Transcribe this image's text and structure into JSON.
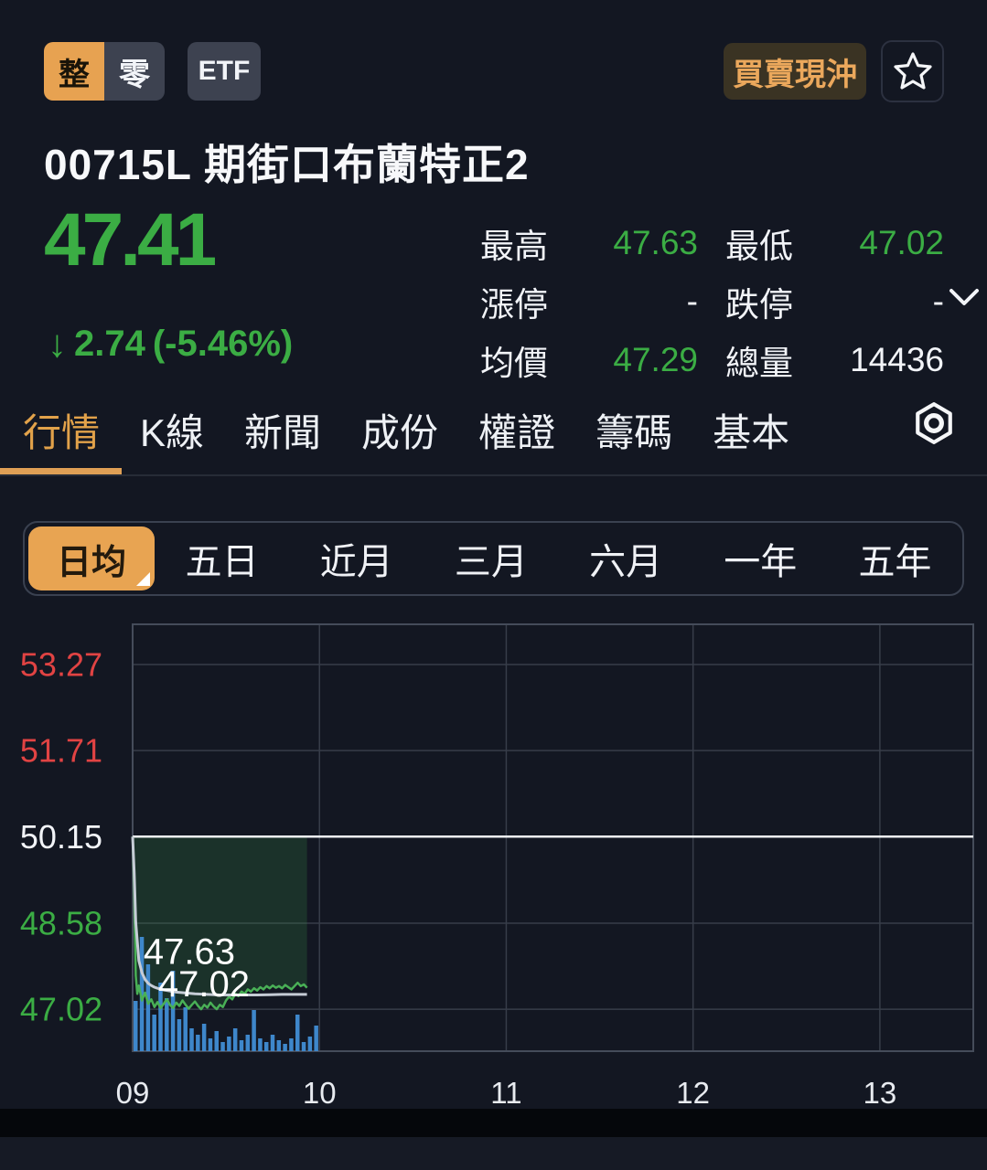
{
  "header": {
    "lot_toggle": {
      "options": [
        "整",
        "零"
      ],
      "selected": "整"
    },
    "etf_badge": "ETF",
    "day_trade_button": "買賣現沖"
  },
  "stock": {
    "title": "00715L 期街口布蘭特正2",
    "price": "47.41",
    "change_arrow": "↓",
    "change": "2.74",
    "change_pct": "(-5.46%)",
    "stats": {
      "rows": [
        {
          "label1": "最高",
          "value1": "47.63",
          "label2": "最低",
          "value2": "47.02"
        },
        {
          "label1": "漲停",
          "value1": "-",
          "label2": "跌停",
          "value2": "-"
        },
        {
          "label1": "均價",
          "value1": "47.29",
          "label2": "總量",
          "value2": "14436"
        }
      ]
    }
  },
  "tabs": {
    "items": [
      {
        "label": "行情"
      },
      {
        "label": "K線"
      },
      {
        "label": "新聞"
      },
      {
        "label": "成份"
      },
      {
        "label": "權證"
      },
      {
        "label": "籌碼"
      },
      {
        "label": "基本"
      }
    ],
    "settings_icon": "hex-nut-icon"
  },
  "ranges": {
    "items": [
      {
        "label": "日均",
        "active": true
      },
      {
        "label": "五日"
      },
      {
        "label": "近月"
      },
      {
        "label": "三月"
      },
      {
        "label": "六月"
      },
      {
        "label": "一年"
      },
      {
        "label": "五年"
      }
    ]
  },
  "colors": {
    "accent_orange": "#e7a251",
    "green": "#3bad44",
    "green_line": "#49b056",
    "red": "#e14343",
    "volume_blue": "#3e87cb",
    "background": "#131722",
    "reference_white": "#eef1f4",
    "avg_line": "#c6ccd6",
    "gridline": "#373d49",
    "plot_border": "#454c5a",
    "fill_green": "rgba(62,158,76,0.20)",
    "axis_text": "#e8ebf0"
  },
  "chart_data": {
    "type": "line",
    "title": "intraday price with average line and volume",
    "session_minutes": 270,
    "x_ticks": [
      {
        "minute": 0,
        "label": "09"
      },
      {
        "minute": 60,
        "label": "10"
      },
      {
        "minute": 120,
        "label": "11"
      },
      {
        "minute": 180,
        "label": "12"
      },
      {
        "minute": 240,
        "label": "13"
      }
    ],
    "x_gridline_minutes": [
      60,
      120,
      180,
      240
    ],
    "ylim": [
      46.26,
      54.0
    ],
    "y_ticks": [
      {
        "value": 53.27,
        "label": "53.27",
        "color": "#e14343"
      },
      {
        "value": 51.71,
        "label": "51.71",
        "color": "#e14343"
      },
      {
        "value": 50.15,
        "label": "50.15",
        "color": "#f2f4f8"
      },
      {
        "value": 48.58,
        "label": "48.58",
        "color": "#3bad44"
      },
      {
        "value": 47.02,
        "label": "47.02",
        "color": "#3bad44"
      }
    ],
    "reference_price": 50.15,
    "high": "47.63",
    "low": "47.02",
    "annotations": [
      {
        "text": "47.63",
        "minute": 3.5,
        "price": 48.06
      },
      {
        "text": "47.02",
        "minute": 8.2,
        "price": 47.47
      }
    ],
    "price_series": [
      [
        0,
        50.15
      ],
      [
        0.5,
        49.2
      ],
      [
        1,
        47.63
      ],
      [
        1.5,
        47.3
      ],
      [
        2,
        47.45
      ],
      [
        3,
        47.18
      ],
      [
        4,
        47.32
      ],
      [
        5,
        47.12
      ],
      [
        6,
        47.2
      ],
      [
        7,
        47.06
      ],
      [
        8,
        47.15
      ],
      [
        9,
        47.04
      ],
      [
        10,
        47.12
      ],
      [
        11,
        47.2
      ],
      [
        12,
        47.1
      ],
      [
        13,
        47.04
      ],
      [
        14,
        47.14
      ],
      [
        15,
        47.08
      ],
      [
        16,
        47.18
      ],
      [
        17,
        47.1
      ],
      [
        18,
        47.03
      ],
      [
        19,
        47.1
      ],
      [
        20,
        47.16
      ],
      [
        21,
        47.08
      ],
      [
        22,
        47.02
      ],
      [
        23,
        47.1
      ],
      [
        24,
        47.05
      ],
      [
        25,
        47.14
      ],
      [
        26,
        47.07
      ],
      [
        27,
        47.02
      ],
      [
        28,
        47.1
      ],
      [
        29,
        47.06
      ],
      [
        30,
        47.18
      ],
      [
        31,
        47.25
      ],
      [
        32,
        47.2
      ],
      [
        33,
        47.3
      ],
      [
        34,
        47.26
      ],
      [
        35,
        47.34
      ],
      [
        36,
        47.3
      ],
      [
        37,
        47.38
      ],
      [
        38,
        47.34
      ],
      [
        39,
        47.4
      ],
      [
        40,
        47.36
      ],
      [
        41,
        47.42
      ],
      [
        42,
        47.38
      ],
      [
        43,
        47.44
      ],
      [
        44,
        47.4
      ],
      [
        45,
        47.45
      ],
      [
        46,
        47.41
      ],
      [
        47,
        47.44
      ],
      [
        48,
        47.4
      ],
      [
        49,
        47.46
      ],
      [
        50,
        47.42
      ],
      [
        51,
        47.38
      ],
      [
        52,
        47.44
      ],
      [
        53,
        47.5
      ],
      [
        54,
        47.44
      ],
      [
        55,
        47.47
      ],
      [
        56,
        47.41
      ]
    ],
    "avg_series": [
      [
        0,
        50.15
      ],
      [
        0.5,
        49.5
      ],
      [
        1,
        48.6
      ],
      [
        2,
        47.9
      ],
      [
        3,
        47.68
      ],
      [
        4,
        47.56
      ],
      [
        5,
        47.49
      ],
      [
        6,
        47.45
      ],
      [
        7,
        47.42
      ],
      [
        8,
        47.4
      ],
      [
        10,
        47.37
      ],
      [
        12,
        47.35
      ],
      [
        14,
        47.33
      ],
      [
        16,
        47.32
      ],
      [
        18,
        47.31
      ],
      [
        20,
        47.3
      ],
      [
        24,
        47.29
      ],
      [
        28,
        47.28
      ],
      [
        32,
        47.28
      ],
      [
        36,
        47.28
      ],
      [
        40,
        47.28
      ],
      [
        44,
        47.285
      ],
      [
        48,
        47.29
      ],
      [
        52,
        47.29
      ],
      [
        56,
        47.29
      ]
    ],
    "volume": {
      "interval_min": 2,
      "values": [
        55,
        125,
        95,
        40,
        75,
        58,
        88,
        35,
        48,
        25,
        18,
        30,
        14,
        22,
        10,
        16,
        25,
        12,
        18,
        45,
        14,
        10,
        18,
        12,
        8,
        14,
        40,
        10,
        16,
        28
      ]
    }
  }
}
